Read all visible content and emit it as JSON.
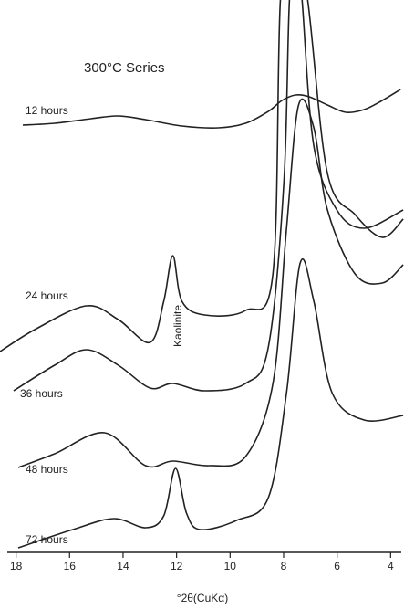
{
  "chart_data": {
    "type": "line",
    "title": "300°C Series",
    "x_label": "°2θ(CuKα)",
    "annotation": "Kaolinite",
    "xlim": [
      18.6,
      3.5
    ],
    "xticks": [
      18,
      16,
      14,
      12,
      10,
      8,
      6,
      4
    ],
    "ylim": [
      0,
      600
    ],
    "color": "#222222",
    "series": [
      {
        "name": "12 hours",
        "x": [
          17.75,
          16.56,
          15.2,
          14.18,
          13.16,
          11.8,
          10.44,
          9.42,
          8.57,
          8.06,
          7.55,
          7.04,
          6.36,
          5.68,
          4.99,
          4.31,
          3.63
        ],
        "values": [
          463,
          465,
          470,
          473,
          469,
          462,
          460,
          465,
          478,
          490,
          496,
          494,
          485,
          477,
          480,
          490,
          502
        ]
      },
      {
        "name": "24 hours",
        "x": [
          18.6,
          17.24,
          15.37,
          14.18,
          12.99,
          12.48,
          12.14,
          11.8,
          10.95,
          9.42,
          8.4,
          8.12,
          7.65,
          7.1,
          6.36,
          5.33,
          4.31,
          3.53
        ],
        "values": [
          215,
          240,
          265,
          250,
          225,
          270,
          320,
          270,
          255,
          260,
          300,
          600,
          680,
          600,
          410,
          365,
          340,
          360
        ]
      },
      {
        "name": "36 hours",
        "x": [
          18.09,
          16.56,
          15.37,
          14.18,
          12.99,
          12.14,
          10.95,
          9.42,
          8.57,
          7.99,
          7.78,
          7.51,
          7.31,
          6.87,
          6.01,
          4.99,
          3.53
        ],
        "values": [
          172,
          200,
          217,
          200,
          175,
          180,
          172,
          180,
          220,
          400,
          600,
          660,
          600,
          440,
          370,
          350,
          370
        ]
      },
      {
        "name": "48 hours",
        "x": [
          17.92,
          16.56,
          14.69,
          13.16,
          12.14,
          10.78,
          9.42,
          8.4,
          7.89,
          7.44,
          6.87,
          6.36,
          5.33,
          4.31,
          3.53
        ],
        "values": [
          88,
          103,
          126,
          90,
          95,
          90,
          100,
          180,
          350,
          485,
          460,
          370,
          300,
          290,
          310
        ]
      },
      {
        "name": "72 hours",
        "x": [
          17.92,
          15.88,
          14.35,
          13.16,
          12.48,
          12.04,
          11.63,
          11.12,
          9.76,
          8.57,
          7.89,
          7.38,
          6.87,
          6.19,
          4.99,
          3.53
        ],
        "values": [
          0,
          20,
          32,
          22,
          35,
          87,
          38,
          20,
          30,
          55,
          170,
          312,
          270,
          170,
          140,
          145
        ]
      }
    ]
  }
}
